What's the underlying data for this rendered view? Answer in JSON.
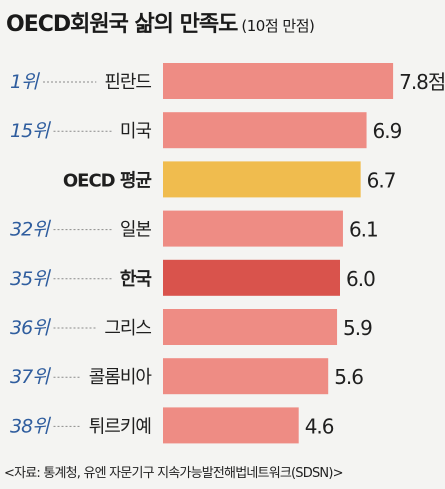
{
  "title": "OECD회원국 삶의 만족도",
  "unit_note": "(10점 만점)",
  "source": "<자료: 통계청, 유엔 자문기구 지속가능발전해법네트워크(SDSN)>",
  "colors": {
    "bar": "#ee8c84",
    "highlight_bar": "#d9534c",
    "average_bar": "#f0bc4e",
    "rank_text": "#2f5d9e",
    "leader": "#8a8a8a"
  },
  "chart_data": {
    "type": "bar",
    "orientation": "horizontal",
    "title": "OECD회원국 삶의 만족도",
    "subtitle": "(10점 만점)",
    "value_suffix_first": "점",
    "xlim": [
      0,
      10
    ],
    "rows": [
      {
        "rank": "1위",
        "country": "핀란드",
        "value": 7.8,
        "value_label": "7.8점",
        "kind": "normal"
      },
      {
        "rank": "15위",
        "country": "미국",
        "value": 6.9,
        "value_label": "6.9",
        "kind": "normal"
      },
      {
        "rank": "",
        "country": "OECD 평균",
        "value": 6.7,
        "value_label": "6.7",
        "kind": "average"
      },
      {
        "rank": "32위",
        "country": "일본",
        "value": 6.1,
        "value_label": "6.1",
        "kind": "normal"
      },
      {
        "rank": "35위",
        "country": "한국",
        "value": 6.0,
        "value_label": "6.0",
        "kind": "highlight"
      },
      {
        "rank": "36위",
        "country": "그리스",
        "value": 5.9,
        "value_label": "5.9",
        "kind": "normal"
      },
      {
        "rank": "37위",
        "country": "콜롬비아",
        "value": 5.6,
        "value_label": "5.6",
        "kind": "normal"
      },
      {
        "rank": "38위",
        "country": "튀르키예",
        "value": 4.6,
        "value_label": "4.6",
        "kind": "normal"
      }
    ]
  }
}
